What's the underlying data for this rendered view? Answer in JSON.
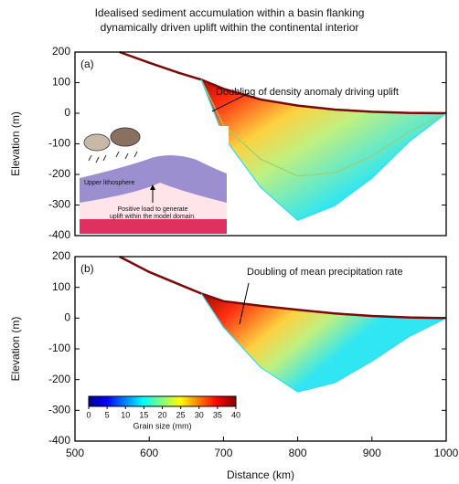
{
  "title": [
    "Idealised sediment accumulation within a basin flanking",
    "dynamically driven uplift within the continental interior"
  ],
  "chart_data": [
    {
      "type": "line",
      "panel": "(a)",
      "annotation": "Doubling of density anomaly driving uplift",
      "ylabel": "Elevation (m)",
      "inset_labels": [
        "Upper lithosphere",
        "Positive load to generate",
        "uplift within the model domain."
      ],
      "x": [
        560,
        600,
        640,
        670,
        700,
        750,
        800,
        850,
        900,
        950,
        1000
      ],
      "series": [
        {
          "color": "#7a0a0a",
          "values": [
            200,
            165,
            132,
            110,
            80,
            45,
            25,
            12,
            5,
            1,
            0
          ]
        },
        {
          "color": "#9ccf70",
          "values": [
            null,
            null,
            null,
            110,
            -40,
            -150,
            -205,
            -195,
            -140,
            -60,
            0
          ]
        },
        {
          "color": "#33dcef",
          "values": [
            null,
            null,
            null,
            110,
            -77,
            -242,
            -350,
            -302,
            -212,
            -93,
            0
          ]
        }
      ],
      "xlim": [
        500,
        1000
      ],
      "ylim": [
        -400,
        200
      ],
      "yticks": [
        -400,
        -300,
        -200,
        -100,
        0,
        100,
        200
      ]
    },
    {
      "type": "line",
      "panel": "(b)",
      "annotation": "Doubling of mean precipitation rate",
      "ylabel": "Elevation (m)",
      "xlabel": "Distance (km)",
      "x": [
        560,
        600,
        640,
        670,
        700,
        750,
        800,
        850,
        900,
        950,
        1000
      ],
      "series": [
        {
          "color": "#7a0a0a",
          "values": [
            200,
            150,
            110,
            80,
            55,
            40,
            27,
            15,
            7,
            2,
            0
          ]
        },
        {
          "color": "#33dcef",
          "values": [
            null,
            null,
            null,
            80,
            -30,
            -160,
            -240,
            -210,
            -140,
            -60,
            0
          ]
        }
      ],
      "xlim": [
        500,
        1000
      ],
      "ylim": [
        -400,
        200
      ],
      "yticks": [
        -400,
        -300,
        -200,
        -100,
        0,
        100,
        200
      ],
      "xticks": [
        500,
        600,
        700,
        800,
        900,
        1000
      ],
      "colorbar": {
        "label": "Grain size (mm)",
        "lim": [
          0,
          40
        ],
        "ticks": [
          0,
          5,
          10,
          15,
          20,
          25,
          30,
          35,
          40
        ]
      }
    }
  ]
}
